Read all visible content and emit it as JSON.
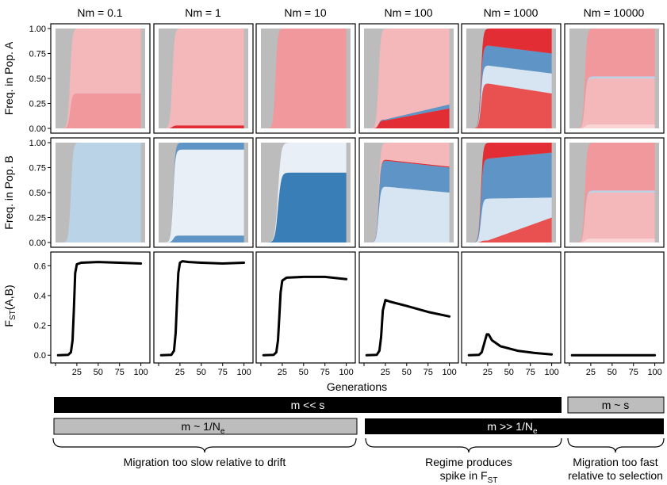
{
  "figure": {
    "y_label_a": "Freq. in Pop. A",
    "y_label_b": "Freq. in Pop. B",
    "y_label_fst_main": "F",
    "y_label_fst_sub": "ST",
    "y_label_fst_tail": "(A,B)",
    "x_label": "Generations"
  },
  "chart_data": {
    "type": "area",
    "panels": [
      {
        "title": "Nm = 0.1",
        "nm": 0.1
      },
      {
        "title": "Nm = 1",
        "nm": 1
      },
      {
        "title": "Nm = 10",
        "nm": 10
      },
      {
        "title": "Nm = 100",
        "nm": 100
      },
      {
        "title": "Nm = 1000",
        "nm": 1000
      },
      {
        "title": "Nm = 10000",
        "nm": 10000
      }
    ],
    "freq_axis": {
      "ylim": [
        0,
        1
      ],
      "ticks": [
        "1.00",
        "0.75",
        "0.50",
        "0.25",
        "0.00"
      ],
      "tick_values": [
        1,
        0.75,
        0.5,
        0.25,
        0
      ]
    },
    "fst_axis": {
      "ylim": [
        -0.02,
        0.66
      ],
      "ticks": [
        "0.6",
        "0.4",
        "0.2",
        "0.0"
      ],
      "tick_values": [
        0.6,
        0.4,
        0.2,
        0
      ]
    },
    "x_axis": {
      "xlim": [
        0,
        105
      ],
      "ticks": [
        "25",
        "50",
        "75",
        "100"
      ],
      "tick_values": [
        25,
        50,
        75,
        100
      ]
    },
    "fst_series": [
      {
        "nm": 0.1,
        "points": [
          [
            3,
            0
          ],
          [
            15,
            0.003
          ],
          [
            18,
            0.02
          ],
          [
            20,
            0.1
          ],
          [
            21.5,
            0.3
          ],
          [
            23,
            0.55
          ],
          [
            25,
            0.61
          ],
          [
            30,
            0.62
          ],
          [
            50,
            0.625
          ],
          [
            75,
            0.62
          ],
          [
            100,
            0.615
          ]
        ]
      },
      {
        "nm": 1,
        "points": [
          [
            3,
            0
          ],
          [
            15,
            0.003
          ],
          [
            18,
            0.03
          ],
          [
            20,
            0.15
          ],
          [
            21.5,
            0.35
          ],
          [
            23,
            0.55
          ],
          [
            25,
            0.62
          ],
          [
            28,
            0.63
          ],
          [
            35,
            0.625
          ],
          [
            50,
            0.62
          ],
          [
            75,
            0.615
          ],
          [
            100,
            0.62
          ]
        ]
      },
      {
        "nm": 10,
        "points": [
          [
            3,
            0
          ],
          [
            15,
            0.003
          ],
          [
            18,
            0.02
          ],
          [
            20,
            0.1
          ],
          [
            21.5,
            0.25
          ],
          [
            23,
            0.42
          ],
          [
            25,
            0.5
          ],
          [
            30,
            0.52
          ],
          [
            50,
            0.525
          ],
          [
            75,
            0.525
          ],
          [
            100,
            0.51
          ]
        ]
      },
      {
        "nm": 100,
        "points": [
          [
            3,
            0
          ],
          [
            15,
            0.003
          ],
          [
            18,
            0.03
          ],
          [
            20,
            0.12
          ],
          [
            22,
            0.3
          ],
          [
            25,
            0.37
          ],
          [
            30,
            0.36
          ],
          [
            50,
            0.33
          ],
          [
            75,
            0.29
          ],
          [
            100,
            0.26
          ]
        ]
      },
      {
        "nm": 1000,
        "points": [
          [
            3,
            0
          ],
          [
            15,
            0.003
          ],
          [
            18,
            0.02
          ],
          [
            21,
            0.08
          ],
          [
            24,
            0.14
          ],
          [
            26,
            0.14
          ],
          [
            30,
            0.1
          ],
          [
            40,
            0.06
          ],
          [
            60,
            0.03
          ],
          [
            80,
            0.015
          ],
          [
            100,
            0.005
          ]
        ]
      },
      {
        "nm": 10000,
        "points": [
          [
            3,
            0
          ],
          [
            100,
            0
          ]
        ]
      }
    ],
    "freq_layers_note": "Stacked muller areas per panel; grey = ancestral, reds = Pop. A alleles, blues = Pop. B alleles."
  },
  "annotations": {
    "bar_m_ll_s": "m << s",
    "bar_m_sim_s": "m ~ s",
    "bar_m_sim_1ne_main": "m ~ 1/N",
    "bar_m_sim_1ne_sub": "e",
    "bar_m_gg_1ne_main": "m >> 1/N",
    "bar_m_gg_1ne_sub": "e",
    "regime_left": "Migration too slow relative to drift",
    "regime_mid_line1": "Regime produces",
    "regime_mid_line2_main": "spike in F",
    "regime_mid_line2_sub": "ST",
    "regime_right_line1": "Migration too fast",
    "regime_right_line2": "relative to selection"
  },
  "colors": {
    "grey": "#bcbcbc",
    "red_dark": "#e22d35",
    "red_mid": "#e8514f",
    "pink": "#f0989c",
    "pink_light": "#f5b8ba",
    "pink_pale": "#fad4d4",
    "blue_dark": "#3a7eb8",
    "blue_mid": "#5f95c6",
    "blue_light": "#bad3e7",
    "blue_pale": "#d7e4f1",
    "blue_white": "#e9eff6",
    "bar_black": "#000000",
    "bar_grey": "#bdbdbd"
  }
}
